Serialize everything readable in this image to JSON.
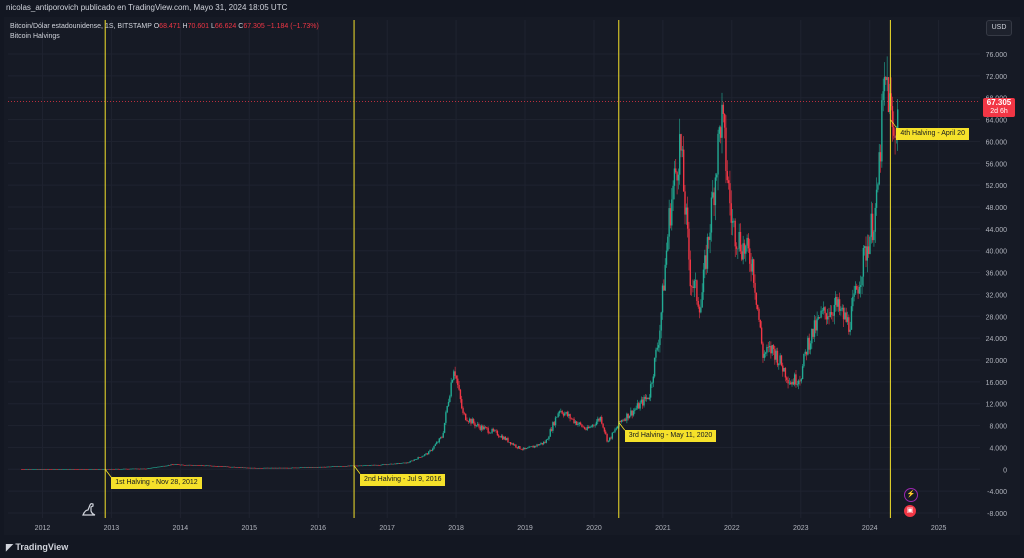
{
  "header": {
    "publisher_text": "nicolas_antiporovich publicado en TradingView.com, Mayo 31, 2024 18:05 UTC"
  },
  "legend": {
    "symbol": "Bitcoin/Dólar estadounidense, 1S, BITSTAMP",
    "o_label": "O",
    "o_value": "68.471",
    "h_label": "H",
    "h_value": "70.601",
    "l_label": "L",
    "l_value": "66.624",
    "c_label": "C",
    "c_value": "67.305",
    "change": "−1.184 (−1.73%)",
    "indicator": "Bitcoin Halvings"
  },
  "toolbar": {
    "currency_label": "USD"
  },
  "price_tag": {
    "price": "67.305",
    "countdown": "2d 6h"
  },
  "footer": {
    "brand": "TradingView"
  },
  "colors": {
    "background": "#161a25",
    "up": "#22ab94",
    "down": "#f23645",
    "halving": "#f5e12a",
    "grid": "#1f2330"
  },
  "icons": [
    "dino-icon",
    "lightning-icon",
    "calendar-icon",
    "tradingview-logo"
  ],
  "chart_data": {
    "type": "candlestick",
    "title": "",
    "xlabel": "",
    "ylabel": "",
    "ylim": [
      -8000,
      78000
    ],
    "xlim": [
      2011.5,
      2025.6
    ],
    "grid": true,
    "y_ticks": [
      "76.000",
      "72.000",
      "68.000",
      "64.000",
      "60.000",
      "56.000",
      "52.000",
      "48.000",
      "44.000",
      "40.000",
      "36.000",
      "32.000",
      "28.000",
      "24.000",
      "20.000",
      "16.000",
      "12.000",
      "8.000",
      "4.000",
      "0",
      "-4.000",
      "-8.000"
    ],
    "y_tick_values": [
      76000,
      72000,
      68000,
      64000,
      60000,
      56000,
      52000,
      48000,
      44000,
      40000,
      36000,
      32000,
      28000,
      24000,
      20000,
      16000,
      12000,
      8000,
      4000,
      0,
      -4000,
      -8000
    ],
    "x_ticks": [
      "2012",
      "2013",
      "2014",
      "2015",
      "2016",
      "2017",
      "2018",
      "2019",
      "2020",
      "2021",
      "2022",
      "2023",
      "2024",
      "2025"
    ],
    "x_tick_values": [
      2012,
      2013,
      2014,
      2015,
      2016,
      2017,
      2018,
      2019,
      2020,
      2021,
      2022,
      2023,
      2024,
      2025
    ],
    "current_price": 67305,
    "price_path": [
      [
        2011.7,
        5
      ],
      [
        2012.0,
        6
      ],
      [
        2012.5,
        8
      ],
      [
        2012.9,
        12
      ],
      [
        2013.3,
        100
      ],
      [
        2013.5,
        90
      ],
      [
        2013.9,
        900
      ],
      [
        2014.1,
        800
      ],
      [
        2014.5,
        600
      ],
      [
        2015.0,
        250
      ],
      [
        2015.5,
        250
      ],
      [
        2016.0,
        400
      ],
      [
        2016.5,
        650
      ],
      [
        2016.9,
        800
      ],
      [
        2017.3,
        1200
      ],
      [
        2017.6,
        3000
      ],
      [
        2017.8,
        6000
      ],
      [
        2017.97,
        19000
      ],
      [
        2018.1,
        10000
      ],
      [
        2018.3,
        8000
      ],
      [
        2018.6,
        6500
      ],
      [
        2018.9,
        4000
      ],
      [
        2019.0,
        3600
      ],
      [
        2019.3,
        5000
      ],
      [
        2019.5,
        11000
      ],
      [
        2019.7,
        9000
      ],
      [
        2019.9,
        7200
      ],
      [
        2020.1,
        9500
      ],
      [
        2020.2,
        5000
      ],
      [
        2020.4,
        9000
      ],
      [
        2020.6,
        11000
      ],
      [
        2020.8,
        13500
      ],
      [
        2020.95,
        25000
      ],
      [
        2021.1,
        47000
      ],
      [
        2021.25,
        60000
      ],
      [
        2021.4,
        35000
      ],
      [
        2021.55,
        30000
      ],
      [
        2021.7,
        47000
      ],
      [
        2021.85,
        65000
      ],
      [
        2022.0,
        45000
      ],
      [
        2022.15,
        41000
      ],
      [
        2022.3,
        38000
      ],
      [
        2022.45,
        21000
      ],
      [
        2022.6,
        22000
      ],
      [
        2022.85,
        16000
      ],
      [
        2023.0,
        17000
      ],
      [
        2023.1,
        23000
      ],
      [
        2023.3,
        28000
      ],
      [
        2023.5,
        30000
      ],
      [
        2023.7,
        26500
      ],
      [
        2023.85,
        35000
      ],
      [
        2024.0,
        43000
      ],
      [
        2024.1,
        48000
      ],
      [
        2024.2,
        68000
      ],
      [
        2024.25,
        71000
      ],
      [
        2024.35,
        60000
      ],
      [
        2024.4,
        66000
      ],
      [
        2024.45,
        69000
      ],
      [
        2024.42,
        67305
      ]
    ],
    "halvings": [
      {
        "label": "1st Halving - Nov 28, 2012",
        "x": 2012.91,
        "price": 12
      },
      {
        "label": "2nd Halving - Jul 9, 2016",
        "x": 2016.52,
        "price": 650
      },
      {
        "label": "3rd Halving - May 11, 2020",
        "x": 2020.36,
        "price": 8600
      },
      {
        "label": "4th Halving - April 20",
        "x": 2024.3,
        "price": 64000
      }
    ]
  }
}
